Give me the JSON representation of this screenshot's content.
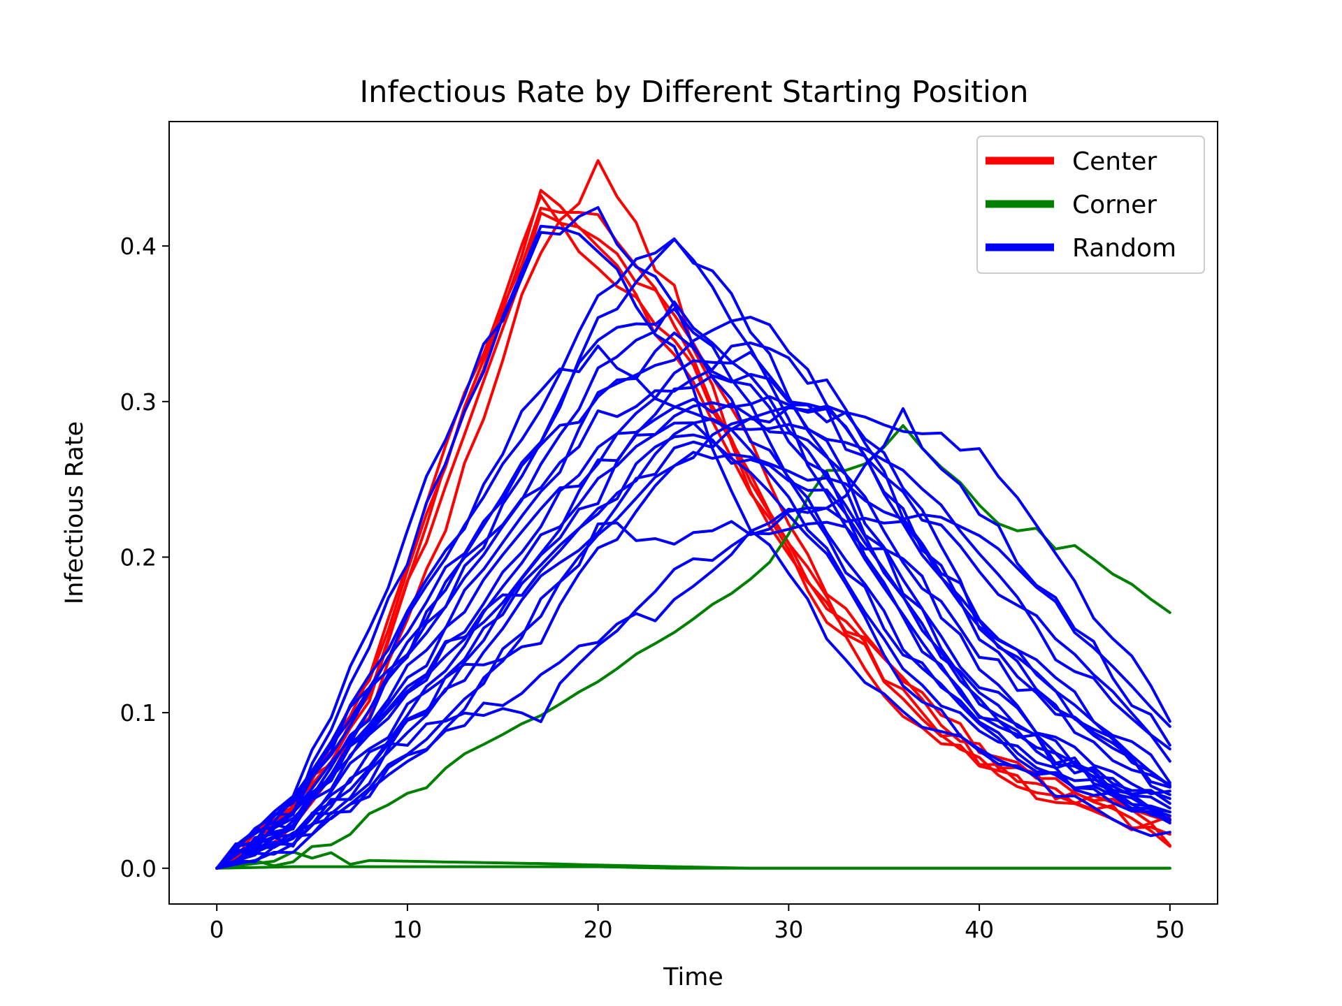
{
  "chart_data": {
    "type": "line",
    "title": "Infectious Rate by Different Starting Position",
    "xlabel": "Time",
    "ylabel": "Infectious Rate",
    "xlim": [
      -2.5,
      52.5
    ],
    "ylim": [
      -0.023,
      0.48
    ],
    "x_ticks": [
      0,
      10,
      20,
      30,
      40,
      50
    ],
    "y_ticks": [
      0.0,
      0.1,
      0.2,
      0.3,
      0.4
    ],
    "x_tick_labels": [
      "0",
      "10",
      "20",
      "30",
      "40",
      "50"
    ],
    "y_tick_labels": [
      "0.0",
      "0.1",
      "0.2",
      "0.3",
      "0.4"
    ],
    "grid": false,
    "legend_position": "top-right",
    "legend": [
      {
        "label": "Center",
        "color": "#ff0000"
      },
      {
        "label": "Corner",
        "color": "#008000"
      },
      {
        "label": "Random",
        "color": "#0000ff"
      }
    ],
    "x_knots": [
      0,
      4,
      8,
      12,
      17,
      20,
      24,
      28,
      32,
      36,
      40,
      44,
      50
    ],
    "groups": [
      {
        "legend": "Center",
        "color": "#ff0000",
        "runs": [
          [
            0,
            0.04,
            0.12,
            0.27,
            0.43,
            0.4,
            0.33,
            0.24,
            0.16,
            0.1,
            0.065,
            0.045,
            0.02
          ],
          [
            0,
            0.035,
            0.11,
            0.26,
            0.42,
            0.42,
            0.35,
            0.25,
            0.17,
            0.11,
            0.07,
            0.05,
            0.025
          ],
          [
            0,
            0.03,
            0.1,
            0.22,
            0.4,
            0.45,
            0.37,
            0.24,
            0.17,
            0.12,
            0.075,
            0.05,
            0.015
          ],
          [
            0,
            0.04,
            0.12,
            0.26,
            0.43,
            0.4,
            0.36,
            0.27,
            0.18,
            0.12,
            0.08,
            0.055,
            0.03
          ],
          [
            0,
            0.035,
            0.11,
            0.25,
            0.42,
            0.39,
            0.34,
            0.25,
            0.17,
            0.11,
            0.07,
            0.045,
            0.024
          ]
        ]
      },
      {
        "legend": "Corner",
        "color": "#008000",
        "runs": [
          [
            0,
            0.01,
            0.03,
            0.06,
            0.1,
            0.12,
            0.15,
            0.18,
            0.25,
            0.28,
            0.23,
            0.21,
            0.165
          ],
          [
            0,
            0.006,
            0.005,
            0.004,
            0.003,
            0.002,
            0.001,
            0,
            0,
            0,
            0,
            0,
            0
          ],
          [
            0,
            0.001,
            0.001,
            0.001,
            0.001,
            0.001,
            0,
            0,
            0,
            0,
            0,
            0,
            0
          ]
        ]
      },
      {
        "legend": "Random",
        "color": "#0000ff",
        "runs": [
          [
            0,
            0.05,
            0.15,
            0.28,
            0.41,
            0.42,
            0.36,
            0.28,
            0.22,
            0.14,
            0.09,
            0.06,
            0.03
          ],
          [
            0,
            0.04,
            0.14,
            0.26,
            0.41,
            0.4,
            0.33,
            0.22,
            0.15,
            0.1,
            0.08,
            0.06,
            0.04
          ],
          [
            0,
            0.04,
            0.12,
            0.2,
            0.3,
            0.37,
            0.41,
            0.35,
            0.26,
            0.18,
            0.12,
            0.08,
            0.045
          ],
          [
            0,
            0.04,
            0.11,
            0.17,
            0.27,
            0.35,
            0.41,
            0.33,
            0.24,
            0.16,
            0.1,
            0.07,
            0.035
          ],
          [
            0,
            0.03,
            0.1,
            0.17,
            0.26,
            0.32,
            0.36,
            0.32,
            0.25,
            0.17,
            0.11,
            0.07,
            0.04
          ],
          [
            0,
            0.03,
            0.09,
            0.16,
            0.24,
            0.3,
            0.33,
            0.36,
            0.3,
            0.22,
            0.16,
            0.11,
            0.055
          ],
          [
            0,
            0.035,
            0.1,
            0.18,
            0.25,
            0.29,
            0.31,
            0.34,
            0.31,
            0.23,
            0.16,
            0.12,
            0.06
          ],
          [
            0,
            0.03,
            0.08,
            0.14,
            0.22,
            0.27,
            0.3,
            0.29,
            0.27,
            0.2,
            0.14,
            0.1,
            0.05
          ],
          [
            0,
            0.02,
            0.07,
            0.13,
            0.21,
            0.25,
            0.29,
            0.3,
            0.29,
            0.28,
            0.27,
            0.2,
            0.1
          ],
          [
            0,
            0.02,
            0.06,
            0.12,
            0.2,
            0.23,
            0.28,
            0.29,
            0.3,
            0.24,
            0.19,
            0.15,
            0.08
          ],
          [
            0,
            0.02,
            0.06,
            0.11,
            0.19,
            0.22,
            0.27,
            0.28,
            0.28,
            0.26,
            0.2,
            0.14,
            0.07
          ],
          [
            0,
            0.02,
            0.05,
            0.09,
            0.17,
            0.21,
            0.26,
            0.27,
            0.25,
            0.23,
            0.21,
            0.17,
            0.09
          ],
          [
            0,
            0.02,
            0.06,
            0.12,
            0.2,
            0.24,
            0.31,
            0.32,
            0.29,
            0.23,
            0.15,
            0.1,
            0.05
          ],
          [
            0,
            0.02,
            0.05,
            0.1,
            0.16,
            0.22,
            0.21,
            0.22,
            0.23,
            0.22,
            0.16,
            0.11,
            0.05
          ],
          [
            0,
            0.01,
            0.05,
            0.09,
            0.12,
            0.15,
            0.17,
            0.22,
            0.23,
            0.29,
            0.23,
            0.17,
            0.08
          ],
          [
            0,
            0.02,
            0.07,
            0.1,
            0.1,
            0.14,
            0.19,
            0.21,
            0.22,
            0.2,
            0.13,
            0.08,
            0.03
          ],
          [
            0,
            0.04,
            0.12,
            0.2,
            0.31,
            0.33,
            0.3,
            0.27,
            0.2,
            0.13,
            0.09,
            0.06,
            0.03
          ],
          [
            0,
            0.03,
            0.1,
            0.18,
            0.28,
            0.34,
            0.36,
            0.3,
            0.21,
            0.14,
            0.09,
            0.06,
            0.03
          ],
          [
            0,
            0.04,
            0.11,
            0.19,
            0.27,
            0.3,
            0.34,
            0.31,
            0.25,
            0.16,
            0.1,
            0.07,
            0.04
          ],
          [
            0,
            0.03,
            0.09,
            0.15,
            0.23,
            0.26,
            0.32,
            0.33,
            0.27,
            0.18,
            0.11,
            0.07,
            0.035
          ],
          [
            0,
            0.02,
            0.08,
            0.12,
            0.15,
            0.2,
            0.26,
            0.29,
            0.3,
            0.25,
            0.16,
            0.1,
            0.05
          ],
          [
            0,
            0.03,
            0.09,
            0.14,
            0.19,
            0.23,
            0.28,
            0.26,
            0.24,
            0.17,
            0.11,
            0.07,
            0.03
          ],
          [
            0,
            0.03,
            0.09,
            0.14,
            0.2,
            0.26,
            0.29,
            0.26,
            0.2,
            0.12,
            0.08,
            0.05,
            0.02
          ]
        ]
      }
    ]
  }
}
